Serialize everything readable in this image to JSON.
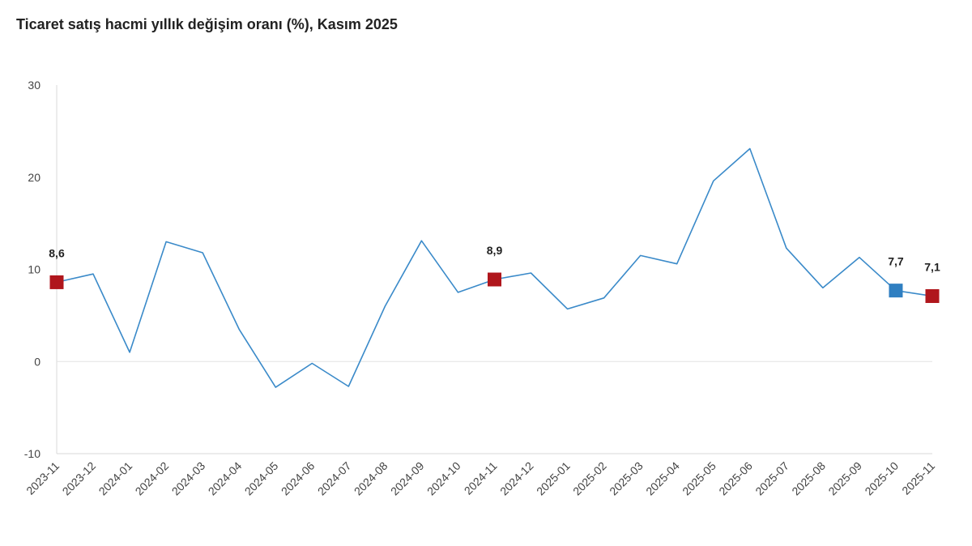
{
  "chart_data": {
    "type": "line",
    "title": "Ticaret satış hacmi yıllık değişim oranı (%), Kasım 2025",
    "xlabel": "",
    "ylabel": "",
    "ylim": [
      -10,
      30
    ],
    "yticks": [
      -10,
      0,
      10,
      20,
      30
    ],
    "grid": "horizontal zero line only",
    "legend": "none",
    "categories": [
      "2023-11",
      "2023-12",
      "2024-01",
      "2024-02",
      "2024-03",
      "2024-04",
      "2024-05",
      "2024-06",
      "2024-07",
      "2024-08",
      "2024-09",
      "2024-10",
      "2024-11",
      "2024-12",
      "2025-01",
      "2025-02",
      "2025-03",
      "2025-04",
      "2025-05",
      "2025-06",
      "2025-07",
      "2025-08",
      "2025-09",
      "2025-10",
      "2025-11"
    ],
    "series": [
      {
        "color": "#3a8ac9",
        "values": [
          8.6,
          9.5,
          1.0,
          13.0,
          11.8,
          3.5,
          -2.8,
          -0.2,
          -2.7,
          6.0,
          13.1,
          7.5,
          8.9,
          9.6,
          5.7,
          6.9,
          11.5,
          10.6,
          19.6,
          23.1,
          12.3,
          8.0,
          11.3,
          7.7,
          7.1
        ]
      }
    ],
    "highlighted_points": [
      {
        "category": "2023-11",
        "value": 8.6,
        "label": "8,6",
        "color": "#b0161c"
      },
      {
        "category": "2024-11",
        "value": 8.9,
        "label": "8,9",
        "color": "#b0161c"
      },
      {
        "category": "2025-10",
        "value": 7.7,
        "label": "7,7",
        "color": "#2f7fc1"
      },
      {
        "category": "2025-11",
        "value": 7.1,
        "label": "7,1",
        "color": "#b0161c"
      }
    ],
    "colors": {
      "line": "#3a8ac9",
      "axis": "#d9d9d9",
      "zero_line": "#e3e3e3"
    }
  }
}
